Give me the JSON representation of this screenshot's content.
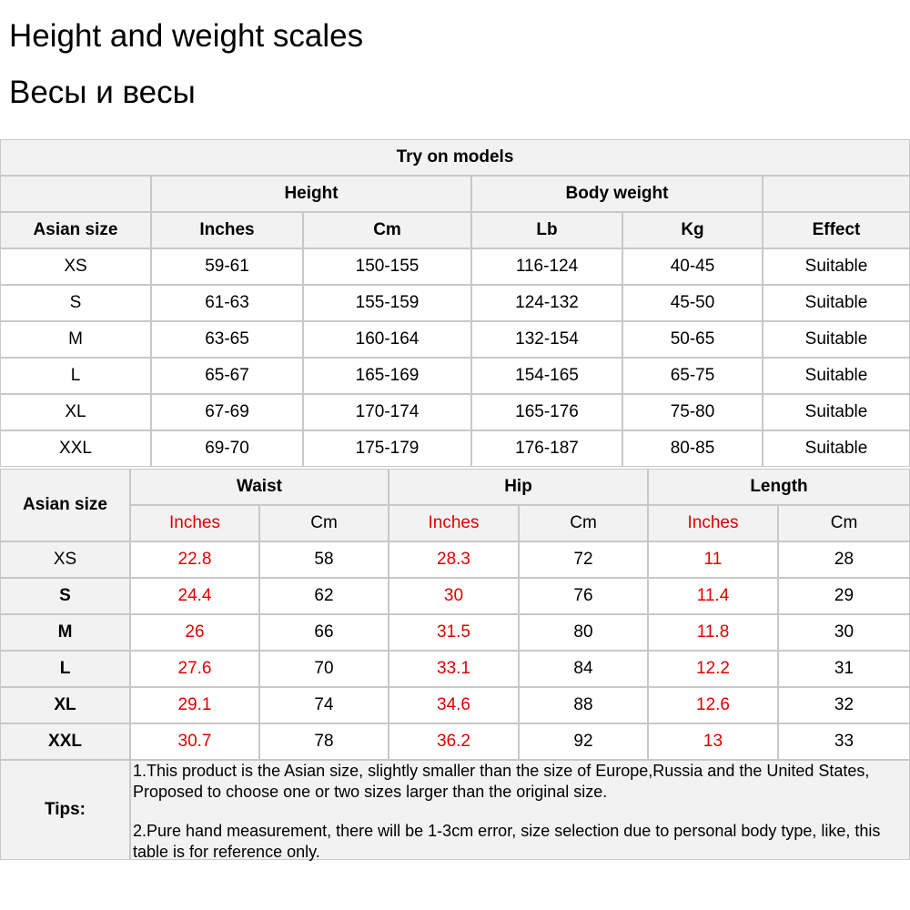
{
  "header": {
    "title": "Height and weight scales",
    "subtitle": "Весы и весы"
  },
  "table1": {
    "title": "Try on models",
    "groups": [
      "Height",
      "Body weight"
    ],
    "columns": [
      "Asian size",
      "Inches",
      "Cm",
      "Lb",
      "Kg",
      "Effect"
    ],
    "rows": [
      [
        "XS",
        "59-61",
        "150-155",
        "116-124",
        "40-45",
        "Suitable"
      ],
      [
        "S",
        "61-63",
        "155-159",
        "124-132",
        "45-50",
        "Suitable"
      ],
      [
        "M",
        "63-65",
        "160-164",
        "132-154",
        "50-65",
        "Suitable"
      ],
      [
        "L",
        "65-67",
        "165-169",
        "154-165",
        "65-75",
        "Suitable"
      ],
      [
        "XL",
        "67-69",
        "170-174",
        "165-176",
        "75-80",
        "Suitable"
      ],
      [
        "XXL",
        "69-70",
        "175-179",
        "176-187",
        "80-85",
        "Suitable"
      ]
    ]
  },
  "table2": {
    "corner": "Asian size",
    "groups": [
      "Waist",
      "Hip",
      "Length"
    ],
    "subcolumns": [
      "Inches",
      "Cm",
      "Inches",
      "Cm",
      "Inches",
      "Cm"
    ],
    "rows": [
      [
        "XS",
        "22.8",
        "58",
        "28.3",
        "72",
        "11",
        "28"
      ],
      [
        "S",
        "24.4",
        "62",
        "30",
        "76",
        "11.4",
        "29"
      ],
      [
        "M",
        "26",
        "66",
        "31.5",
        "80",
        "11.8",
        "30"
      ],
      [
        "L",
        "27.6",
        "70",
        "33.1",
        "84",
        "12.2",
        "31"
      ],
      [
        "XL",
        "29.1",
        "74",
        "34.6",
        "88",
        "12.6",
        "32"
      ],
      [
        "XXL",
        "30.7",
        "78",
        "36.2",
        "92",
        "13",
        "33"
      ]
    ],
    "tips": {
      "label": "Tips:",
      "notes": [
        "1.This product is the Asian size, slightly smaller than the size of Europe,Russia and the United States, Proposed to choose one or two sizes larger than the original size.",
        "2.Pure hand measurement, there will be 1-3cm error, size selection due to personal body type, like, this table is for reference only."
      ]
    }
  }
}
